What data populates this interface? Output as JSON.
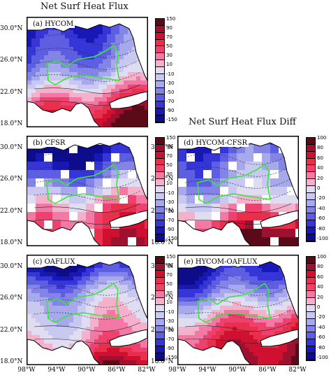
{
  "titles": {
    "left": "Net Surf Heat Flux",
    "right": "Net Surf Heat Flux Diff"
  },
  "panels": [
    {
      "id": "a",
      "label": "(a) HYCOM",
      "col": 0,
      "row": 0,
      "scheme": "flux",
      "mask": "full"
    },
    {
      "id": "b",
      "label": "(b) CFSR",
      "col": 0,
      "row": 1,
      "scheme": "flux",
      "mask": "grid"
    },
    {
      "id": "c",
      "label": "(c) OAFLUX",
      "col": 0,
      "row": 2,
      "scheme": "flux",
      "mask": "full"
    },
    {
      "id": "d",
      "label": "(d) HYCOM-CFSR",
      "col": 1,
      "row": 1,
      "scheme": "diff",
      "mask": "grid"
    },
    {
      "id": "e",
      "label": "(e) HYCOM-OAFLUX",
      "col": 1,
      "row": 2,
      "scheme": "diff",
      "mask": "full"
    }
  ],
  "y_axis_labels": [
    "30.0°N",
    "26.0°N",
    "22.0°N",
    "18.0°N"
  ],
  "x_axis_labels": [
    "98°W",
    "94°W",
    "90°W",
    "86°W",
    "82°W"
  ],
  "colorbars": {
    "flux": {
      "ticks": [
        "150",
        "90",
        "70",
        "50",
        "30",
        "10",
        "-10",
        "-30",
        "-50",
        "-70",
        "-90",
        "-150"
      ],
      "colors": [
        "#5a0a18",
        "#9c1030",
        "#cf1030",
        "#e8304c",
        "#f0406e",
        "#f378a4",
        "#f5b0cc",
        "#e0dcf2",
        "#c8c8f0",
        "#a8a8ec",
        "#8484e6",
        "#5e5ee2",
        "#3636d8",
        "#1818b8",
        "#0c0c8c"
      ]
    },
    "diff": {
      "ticks": [
        "100",
        "80",
        "60",
        "40",
        "20",
        "0",
        "-20",
        "-40",
        "-60",
        "-80",
        "-100"
      ],
      "colors": [
        "#5a0a18",
        "#9c1030",
        "#cf1030",
        "#e8304c",
        "#f0406e",
        "#f378a4",
        "#f5b0cc",
        "#e0dcf2",
        "#c8c8f0",
        "#a8a8ec",
        "#8484e6",
        "#5e5ee2",
        "#3636d8",
        "#1818b8",
        "#0c0c8c"
      ]
    }
  }
}
